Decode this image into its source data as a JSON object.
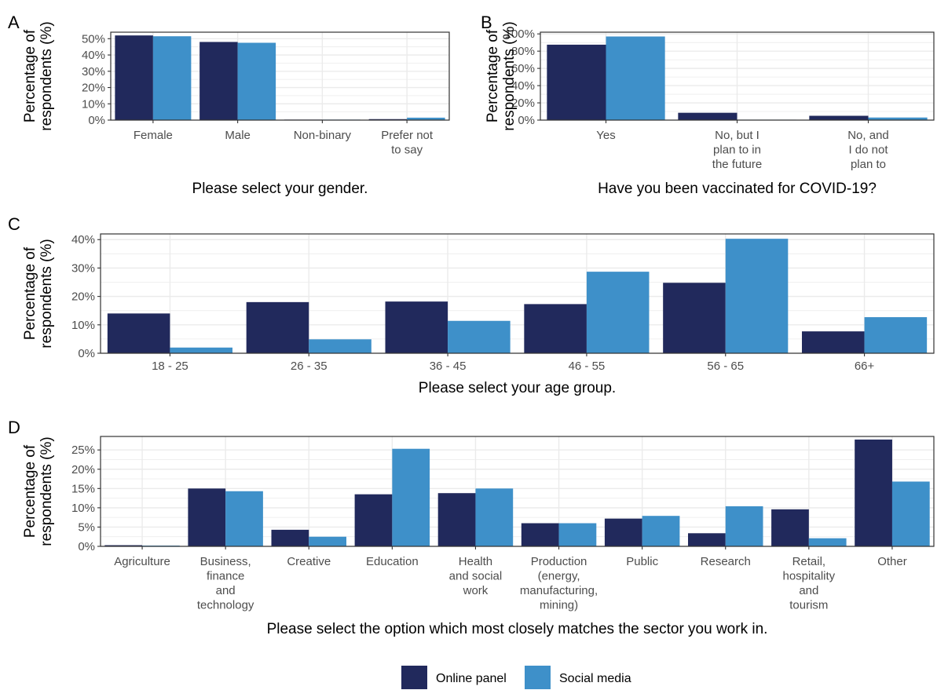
{
  "colors": {
    "online_panel": "#21295c",
    "social_media": "#3e90c9",
    "grid": "#ebebeb",
    "frame": "#333333"
  },
  "legend": {
    "items": [
      {
        "label": "Online panel",
        "color": "#21295c"
      },
      {
        "label": "Social media",
        "color": "#3e90c9"
      }
    ]
  },
  "chart_data": [
    {
      "panel": "A",
      "type": "bar",
      "xlabel": "Please select your gender.",
      "ylabel": "Percentage of respondents (%)",
      "categories": [
        "Female",
        "Male",
        "Non-binary",
        "Prefer not to say"
      ],
      "category_lines": [
        [
          "Female"
        ],
        [
          "Male"
        ],
        [
          "Non-binary"
        ],
        [
          "Prefer not",
          "to say"
        ]
      ],
      "series": [
        {
          "name": "Online panel",
          "values": [
            52,
            48,
            0.3,
            0.6
          ]
        },
        {
          "name": "Social media",
          "values": [
            51.5,
            47.5,
            0.3,
            1.5
          ]
        }
      ],
      "ylim": [
        0,
        54
      ],
      "yticks": [
        0,
        10,
        20,
        30,
        40,
        50
      ],
      "ytick_labels": [
        "0%",
        "10%",
        "20%",
        "30%",
        "40%",
        "50%"
      ]
    },
    {
      "panel": "B",
      "type": "bar",
      "xlabel": "Have you been vaccinated for COVID-19?",
      "ylabel": "Percentage of respondents (%)",
      "categories": [
        "Yes",
        "No, but I plan to in the future",
        "No, and I do not plan to"
      ],
      "category_lines": [
        [
          "Yes"
        ],
        [
          "No, but I",
          "plan to in",
          "the future"
        ],
        [
          "No, and",
          "I do not",
          "plan to"
        ]
      ],
      "series": [
        {
          "name": "Online panel",
          "values": [
            87.5,
            8.5,
            5
          ]
        },
        {
          "name": "Social media",
          "values": [
            97,
            0.5,
            3
          ]
        }
      ],
      "ylim": [
        0,
        102
      ],
      "yticks": [
        0,
        20,
        40,
        60,
        80,
        100
      ],
      "ytick_labels": [
        "0%",
        "20%",
        "40%",
        "60%",
        "80%",
        "100%"
      ]
    },
    {
      "panel": "C",
      "type": "bar",
      "xlabel": "Please select your age group.",
      "ylabel": "Percentage of respondents (%)",
      "categories": [
        "18 - 25",
        "26 - 35",
        "36 - 45",
        "46 - 55",
        "56 - 65",
        "66+"
      ],
      "category_lines": [
        [
          "18 - 25"
        ],
        [
          "26 - 35"
        ],
        [
          "36 - 45"
        ],
        [
          "46 - 55"
        ],
        [
          "56 - 65"
        ],
        [
          "66+"
        ]
      ],
      "series": [
        {
          "name": "Online panel",
          "values": [
            14,
            18,
            18.2,
            17.3,
            24.8,
            7.7
          ]
        },
        {
          "name": "Social media",
          "values": [
            2,
            4.9,
            11.4,
            28.7,
            40.3,
            12.7
          ]
        }
      ],
      "ylim": [
        0,
        42
      ],
      "yticks": [
        0,
        10,
        20,
        30,
        40
      ],
      "ytick_labels": [
        "0%",
        "10%",
        "20%",
        "30%",
        "40%"
      ]
    },
    {
      "panel": "D",
      "type": "bar",
      "xlabel": "Please select the option which most closely matches the sector you work in.",
      "ylabel": "Percentage of respondents (%)",
      "categories": [
        "Agriculture",
        "Business, finance and technology",
        "Creative",
        "Education",
        "Health and social work",
        "Production (energy, manufacturing, mining)",
        "Public",
        "Research",
        "Retail, hospitality and tourism",
        "Other"
      ],
      "category_lines": [
        [
          "Agriculture"
        ],
        [
          "Business,",
          "finance",
          "and",
          "technology"
        ],
        [
          "Creative"
        ],
        [
          "Education"
        ],
        [
          "Health",
          "and social",
          "work"
        ],
        [
          "Production",
          "(energy,",
          "manufacturing,",
          "mining)"
        ],
        [
          "Public"
        ],
        [
          "Research"
        ],
        [
          "Retail,",
          "hospitality",
          "and",
          "tourism"
        ],
        [
          "Other"
        ]
      ],
      "series": [
        {
          "name": "Online panel",
          "values": [
            0.3,
            15,
            4.3,
            13.5,
            13.8,
            6,
            7.2,
            3.4,
            9.6,
            27.7
          ]
        },
        {
          "name": "Social media",
          "values": [
            0.2,
            14.3,
            2.5,
            25.3,
            15,
            6,
            7.9,
            10.4,
            2.1,
            16.8
          ]
        }
      ],
      "ylim": [
        0,
        28.5
      ],
      "yticks": [
        0,
        5,
        10,
        15,
        20,
        25
      ],
      "ytick_labels": [
        "0%",
        "5%",
        "10%",
        "15%",
        "20%",
        "25%"
      ]
    }
  ]
}
